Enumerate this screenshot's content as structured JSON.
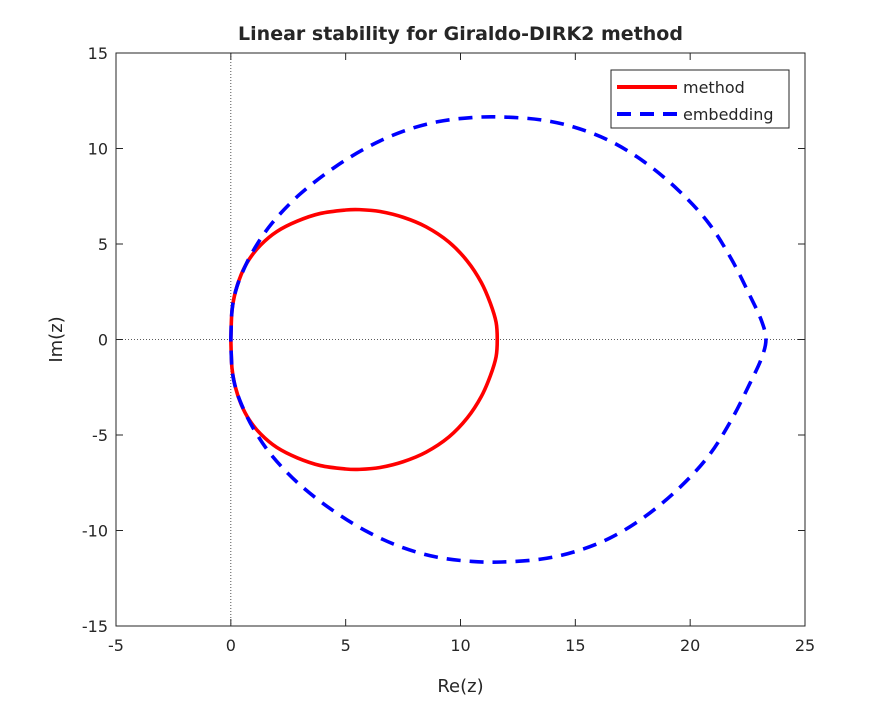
{
  "chart_data": {
    "type": "line",
    "title": "Linear stability for Giraldo-DIRK2 method",
    "xlabel": "Re(z)",
    "ylabel": "Im(z)",
    "xlim": [
      -5,
      25
    ],
    "ylim": [
      -15,
      15
    ],
    "xticks": [
      "-5",
      "0",
      "5",
      "10",
      "15",
      "20",
      "25"
    ],
    "yticks": [
      "-15",
      "-10",
      "-5",
      "0",
      "5",
      "10",
      "15"
    ],
    "grid": false,
    "reference_lines": [
      "x = 0 (dotted)",
      "y = 0 (dotted)"
    ],
    "legend_position": "top-right",
    "series": [
      {
        "name": "method",
        "color": "#ff0000",
        "style": "solid",
        "x": [
          0.0,
          0.05,
          0.2,
          0.45,
          0.8,
          1.3,
          2.0,
          2.9,
          3.9,
          5.0,
          5.6,
          6.5,
          7.5,
          8.5,
          9.5,
          10.3,
          10.9,
          11.3,
          11.55,
          11.6,
          11.55,
          11.3,
          10.9,
          10.3,
          9.5,
          8.5,
          7.5,
          6.5,
          5.6,
          5.0,
          3.9,
          2.9,
          2.0,
          1.3,
          0.8,
          0.45,
          0.2,
          0.05,
          0.0
        ],
        "y": [
          0.0,
          1.5,
          2.5,
          3.4,
          4.2,
          4.95,
          5.65,
          6.2,
          6.6,
          6.78,
          6.8,
          6.7,
          6.4,
          5.9,
          5.1,
          4.1,
          3.0,
          1.9,
          0.9,
          0.0,
          -0.9,
          -1.9,
          -3.0,
          -4.1,
          -5.1,
          -5.9,
          -6.4,
          -6.7,
          -6.8,
          -6.78,
          -6.6,
          -6.2,
          -5.65,
          -4.95,
          -4.2,
          -3.4,
          -2.5,
          -1.5,
          0.0
        ]
      },
      {
        "name": "embedding",
        "color": "#0000ff",
        "style": "dashed",
        "x": [
          0.0,
          0.05,
          0.2,
          0.5,
          1.0,
          1.8,
          3.0,
          4.5,
          6.0,
          7.5,
          9.0,
          10.5,
          11.8,
          13.5,
          15.0,
          16.5,
          18.0,
          19.5,
          20.8,
          21.8,
          22.6,
          23.1,
          23.3,
          23.1,
          22.6,
          21.8,
          20.8,
          19.5,
          18.0,
          16.5,
          15.0,
          13.5,
          11.8,
          10.5,
          9.0,
          7.5,
          6.0,
          4.5,
          3.0,
          1.8,
          1.0,
          0.5,
          0.2,
          0.05,
          0.0
        ],
        "y": [
          0.0,
          1.5,
          2.5,
          3.5,
          4.7,
          6.1,
          7.6,
          9.0,
          10.1,
          10.9,
          11.4,
          11.62,
          11.65,
          11.5,
          11.1,
          10.4,
          9.3,
          7.8,
          6.1,
          4.2,
          2.3,
          1.0,
          0.0,
          -1.0,
          -2.3,
          -4.2,
          -6.1,
          -7.8,
          -9.3,
          -10.4,
          -11.1,
          -11.5,
          -11.65,
          -11.62,
          -11.4,
          -10.9,
          -10.1,
          -9.0,
          -7.6,
          -6.1,
          -4.7,
          -3.5,
          -2.5,
          -1.5,
          0.0
        ]
      }
    ]
  }
}
